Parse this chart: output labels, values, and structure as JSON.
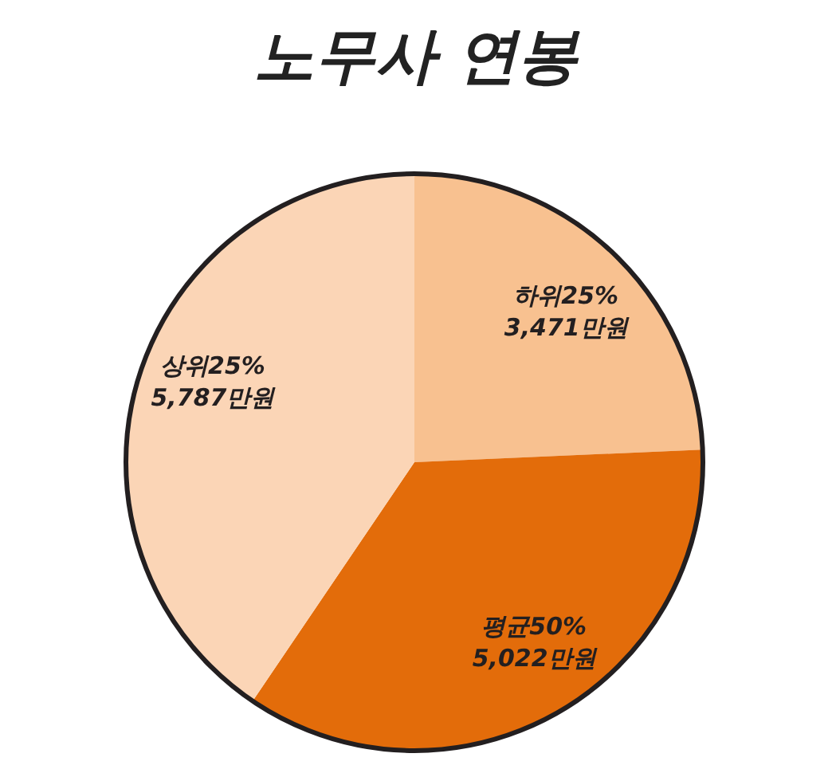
{
  "chart_data": {
    "type": "pie",
    "title": "노무사 연봉",
    "categories": [
      "하위25%",
      "평균50%",
      "상위25%"
    ],
    "values": [
      3471,
      5022,
      5787
    ],
    "value_labels": [
      "3,471만원",
      "5,022만원",
      "5,787만원"
    ],
    "colors": [
      "#f8c190",
      "#e36c0a",
      "#fbd5b6"
    ]
  }
}
